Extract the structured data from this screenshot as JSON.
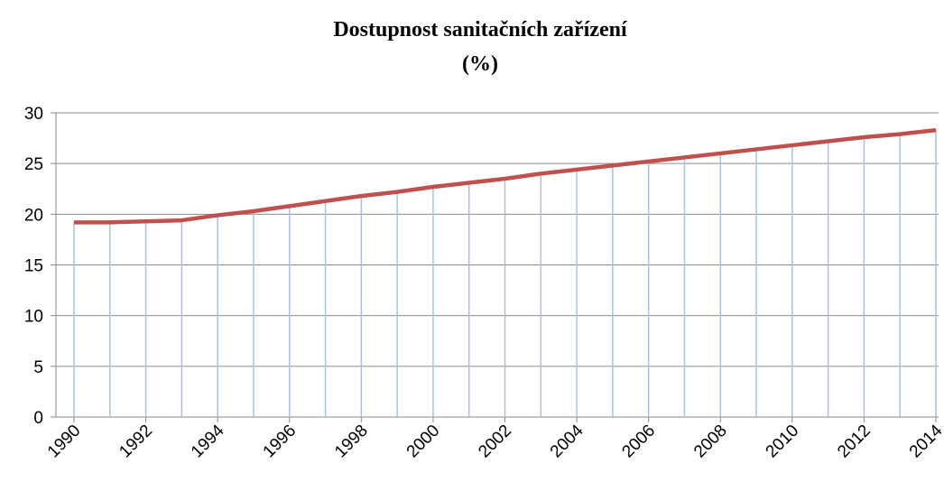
{
  "chart_data": {
    "type": "line",
    "title": "Dostupnost sanitačních zařízení",
    "subtitle": "(%)",
    "x": [
      1990,
      1991,
      1992,
      1993,
      1994,
      1995,
      1996,
      1997,
      1998,
      1999,
      2000,
      2001,
      2002,
      2003,
      2004,
      2005,
      2006,
      2007,
      2008,
      2009,
      2010,
      2011,
      2012,
      2013,
      2014
    ],
    "series": [
      {
        "name": null,
        "color": "#c0504d",
        "values": [
          19.2,
          19.2,
          19.3,
          19.4,
          19.9,
          20.3,
          20.8,
          21.3,
          21.8,
          22.2,
          22.7,
          23.1,
          23.5,
          24.0,
          24.4,
          24.8,
          25.2,
          25.6,
          26.0,
          26.4,
          26.8,
          27.2,
          27.6,
          27.9,
          28.3
        ]
      }
    ],
    "drop_line_color": "#a9c1e8",
    "xlim": [
      1990,
      2014
    ],
    "xticks": [
      1990,
      1992,
      1994,
      1996,
      1998,
      2000,
      2002,
      2004,
      2006,
      2008,
      2010,
      2012,
      2014
    ],
    "ylim": [
      0,
      30
    ],
    "yticks": [
      0,
      5,
      10,
      15,
      20,
      25,
      30
    ],
    "grid": true
  }
}
